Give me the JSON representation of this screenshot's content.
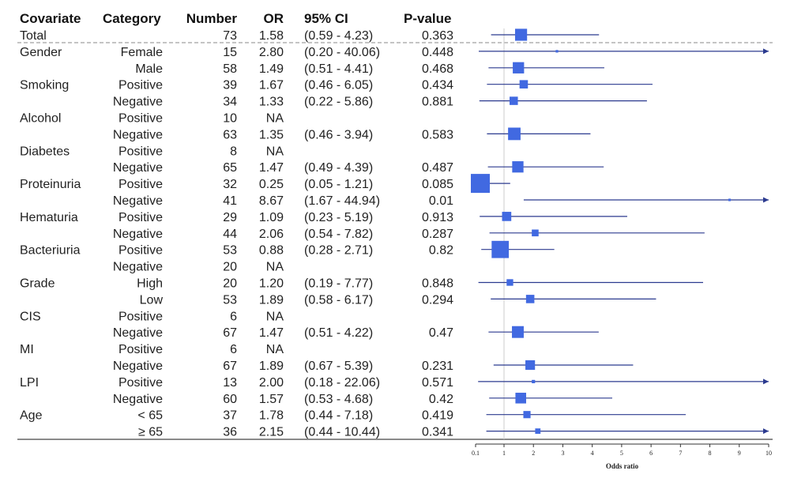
{
  "chart_data": {
    "type": "forest",
    "columns": [
      "Covariate",
      "Category",
      "Number",
      "OR",
      "95% CI",
      "P-value"
    ],
    "xlabel": "Odds ratio",
    "xticks": [
      "0.1",
      "1",
      "2",
      "3",
      "4",
      "5",
      "6",
      "7",
      "8",
      "9",
      "10"
    ],
    "xlim": [
      0.1,
      10
    ],
    "reference_line": 1,
    "marker_color": "#4169e1",
    "line_color": "#2b3a8f",
    "rows": [
      {
        "covariate": "Total",
        "category": "",
        "number": "73",
        "or": "1.58",
        "ci": "(0.59 - 4.23)",
        "p": "0.363",
        "est": 1.58,
        "lo": 0.59,
        "hi": 4.23
      },
      {
        "covariate": "Gender",
        "category": "Female",
        "number": "15",
        "or": "2.80",
        "ci": "(0.20 - 40.06)",
        "p": "0.448",
        "est": 2.8,
        "lo": 0.2,
        "hi": 40.06
      },
      {
        "covariate": "",
        "category": "Male",
        "number": "58",
        "or": "1.49",
        "ci": "(0.51 - 4.41)",
        "p": "0.468",
        "est": 1.49,
        "lo": 0.51,
        "hi": 4.41
      },
      {
        "covariate": "Smoking",
        "category": "Positive",
        "number": "39",
        "or": "1.67",
        "ci": "(0.46 - 6.05)",
        "p": "0.434",
        "est": 1.67,
        "lo": 0.46,
        "hi": 6.05
      },
      {
        "covariate": "",
        "category": "Negative",
        "number": "34",
        "or": "1.33",
        "ci": "(0.22 - 5.86)",
        "p": "0.881",
        "est": 1.33,
        "lo": 0.22,
        "hi": 5.86
      },
      {
        "covariate": "Alcohol",
        "category": "Positive",
        "number": "10",
        "or": "NA",
        "ci": "",
        "p": "",
        "est": null,
        "lo": null,
        "hi": null
      },
      {
        "covariate": "",
        "category": "Negative",
        "number": "63",
        "or": "1.35",
        "ci": "(0.46 - 3.94)",
        "p": "0.583",
        "est": 1.35,
        "lo": 0.46,
        "hi": 3.94
      },
      {
        "covariate": "Diabetes",
        "category": "Positive",
        "number": "8",
        "or": "NA",
        "ci": "",
        "p": "",
        "est": null,
        "lo": null,
        "hi": null
      },
      {
        "covariate": "",
        "category": "Negative",
        "number": "65",
        "or": "1.47",
        "ci": "(0.49 - 4.39)",
        "p": "0.487",
        "est": 1.47,
        "lo": 0.49,
        "hi": 4.39
      },
      {
        "covariate": "Proteinuria",
        "category": "Positive",
        "number": "32",
        "or": "0.25",
        "ci": "(0.05 - 1.21)",
        "p": "0.085",
        "est": 0.25,
        "lo": 0.05,
        "hi": 1.21
      },
      {
        "covariate": "",
        "category": "Negative",
        "number": "41",
        "or": "8.67",
        "ci": "(1.67 - 44.94)",
        "p": "0.01",
        "est": 8.67,
        "lo": 1.67,
        "hi": 44.94
      },
      {
        "covariate": "Hematuria",
        "category": "Positive",
        "number": "29",
        "or": "1.09",
        "ci": "(0.23 - 5.19)",
        "p": "0.913",
        "est": 1.09,
        "lo": 0.23,
        "hi": 5.19
      },
      {
        "covariate": "",
        "category": "Negative",
        "number": "44",
        "or": "2.06",
        "ci": "(0.54 - 7.82)",
        "p": "0.287",
        "est": 2.06,
        "lo": 0.54,
        "hi": 7.82
      },
      {
        "covariate": "Bacteriuria",
        "category": "Positive",
        "number": "53",
        "or": "0.88",
        "ci": "(0.28 - 2.71)",
        "p": "0.82",
        "est": 0.88,
        "lo": 0.28,
        "hi": 2.71
      },
      {
        "covariate": "",
        "category": "Negative",
        "number": "20",
        "or": "NA",
        "ci": "",
        "p": "",
        "est": null,
        "lo": null,
        "hi": null
      },
      {
        "covariate": "Grade",
        "category": "High",
        "number": "20",
        "or": "1.20",
        "ci": "(0.19 - 7.77)",
        "p": "0.848",
        "est": 1.2,
        "lo": 0.19,
        "hi": 7.77
      },
      {
        "covariate": "",
        "category": "Low",
        "number": "53",
        "or": "1.89",
        "ci": "(0.58 - 6.17)",
        "p": "0.294",
        "est": 1.89,
        "lo": 0.58,
        "hi": 6.17
      },
      {
        "covariate": "CIS",
        "category": "Positive",
        "number": "6",
        "or": "NA",
        "ci": "",
        "p": "",
        "est": null,
        "lo": null,
        "hi": null
      },
      {
        "covariate": "",
        "category": "Negative",
        "number": "67",
        "or": "1.47",
        "ci": "(0.51 - 4.22)",
        "p": "0.47",
        "est": 1.47,
        "lo": 0.51,
        "hi": 4.22
      },
      {
        "covariate": "MI",
        "category": "Positive",
        "number": "6",
        "or": "NA",
        "ci": "",
        "p": "",
        "est": null,
        "lo": null,
        "hi": null
      },
      {
        "covariate": "",
        "category": "Negative",
        "number": "67",
        "or": "1.89",
        "ci": "(0.67 - 5.39)",
        "p": "0.231",
        "est": 1.89,
        "lo": 0.67,
        "hi": 5.39
      },
      {
        "covariate": "LPI",
        "category": "Positive",
        "number": "13",
        "or": "2.00",
        "ci": "(0.18 - 22.06)",
        "p": "0.571",
        "est": 2.0,
        "lo": 0.18,
        "hi": 22.06
      },
      {
        "covariate": "",
        "category": "Negative",
        "number": "60",
        "or": "1.57",
        "ci": "(0.53 - 4.68)",
        "p": "0.42",
        "est": 1.57,
        "lo": 0.53,
        "hi": 4.68
      },
      {
        "covariate": "Age",
        "category": "< 65",
        "number": "37",
        "or": "1.78",
        "ci": "(0.44 - 7.18)",
        "p": "0.419",
        "est": 1.78,
        "lo": 0.44,
        "hi": 7.18
      },
      {
        "covariate": "",
        "category": "≥ 65",
        "number": "36",
        "or": "2.15",
        "ci": "(0.44 - 10.44)",
        "p": "0.341",
        "est": 2.15,
        "lo": 0.44,
        "hi": 10.44
      }
    ]
  }
}
